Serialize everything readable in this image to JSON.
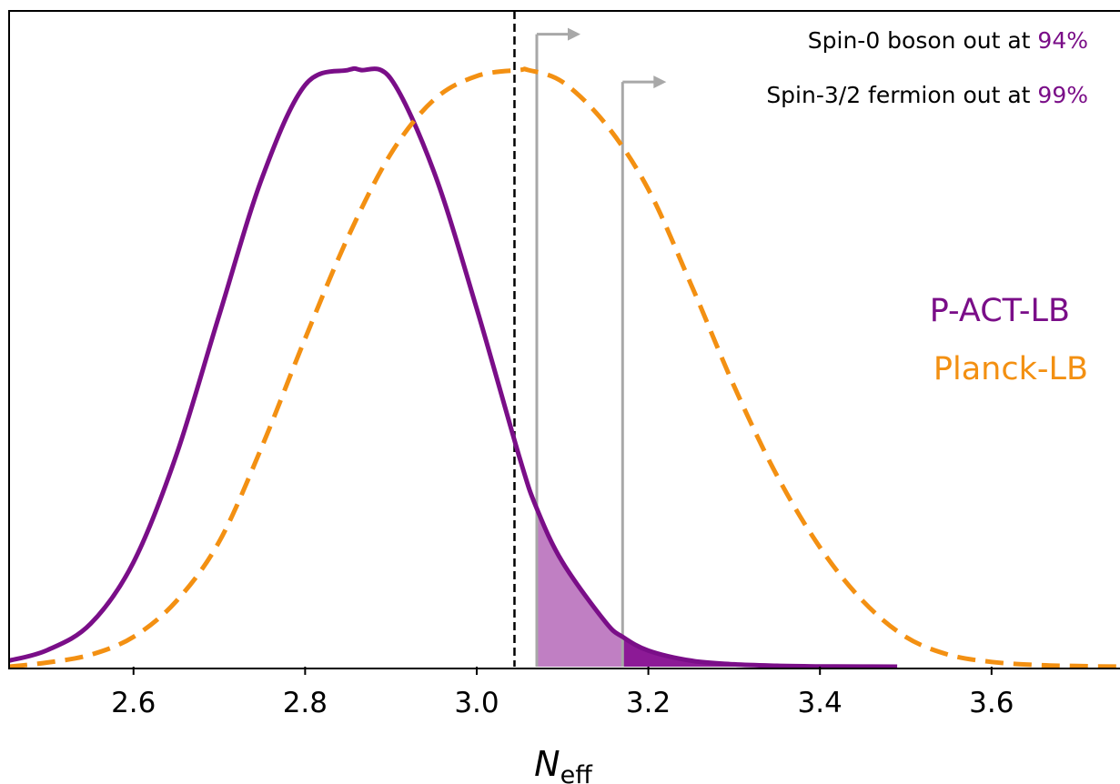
{
  "chart_data": {
    "type": "line",
    "xlabel_main": "N",
    "xlabel_sub": "eff",
    "ylabel": "",
    "xlim": [
      2.455,
      3.755
    ],
    "ylim": [
      0,
      1.1
    ],
    "grid": false,
    "x_ticks": [
      "2.6",
      "2.8",
      "3.0",
      "3.2",
      "3.4",
      "3.6"
    ],
    "y_ticks": [],
    "series": [
      {
        "name": "P-ACT-LB",
        "color": "#7a0e88",
        "style": "solid",
        "x": [
          2.455,
          2.5,
          2.55,
          2.6,
          2.65,
          2.7,
          2.75,
          2.8,
          2.85,
          2.865,
          2.9,
          2.95,
          3.0,
          3.05,
          3.07,
          3.1,
          3.15,
          3.17,
          3.2,
          3.25,
          3.3,
          3.35,
          3.4,
          3.45,
          3.49
        ],
        "y": [
          0.01,
          0.028,
          0.072,
          0.175,
          0.355,
          0.59,
          0.82,
          0.975,
          1.0,
          1.0,
          0.985,
          0.83,
          0.6,
          0.35,
          0.265,
          0.175,
          0.075,
          0.05,
          0.027,
          0.01,
          0.004,
          0.0015,
          0.0005,
          0.0002,
          0.0
        ]
      },
      {
        "name": "Planck-LB",
        "color": "#f39012",
        "style": "dashed",
        "x": [
          2.455,
          2.5,
          2.55,
          2.6,
          2.65,
          2.7,
          2.75,
          2.8,
          2.85,
          2.9,
          2.95,
          3.0,
          3.05,
          3.06,
          3.1,
          3.15,
          3.2,
          3.25,
          3.3,
          3.35,
          3.4,
          3.45,
          3.5,
          3.55,
          3.6,
          3.65,
          3.7,
          3.755
        ],
        "y": [
          0.0,
          0.007,
          0.02,
          0.05,
          0.11,
          0.21,
          0.37,
          0.55,
          0.72,
          0.86,
          0.95,
          0.99,
          1.0,
          1.0,
          0.98,
          0.91,
          0.8,
          0.64,
          0.47,
          0.32,
          0.2,
          0.11,
          0.05,
          0.02,
          0.008,
          0.003,
          0.001,
          0.0
        ]
      }
    ],
    "shaded_regions": [
      {
        "series": "P-ACT-LB",
        "x_from": 3.07,
        "x_to": 3.17,
        "color": "#c07fc3"
      },
      {
        "series": "P-ACT-LB",
        "x_from": 3.17,
        "x_to": 3.49,
        "color": "#8c1a96"
      }
    ],
    "vertical_lines": [
      {
        "x": 3.044,
        "color": "#000000",
        "style": "dashed"
      },
      {
        "x": 3.07,
        "color": "#a8a8a8",
        "style": "solid",
        "arrow": true,
        "ymax": 1.06
      },
      {
        "x": 3.17,
        "color": "#a8a8a8",
        "style": "solid",
        "arrow": true,
        "ymax": 0.98
      }
    ],
    "annotations": [
      {
        "text": "Spin-0 boson out at ",
        "value": "94%"
      },
      {
        "text": "Spin-3/2 fermion out at ",
        "value": "99%"
      }
    ],
    "legend": {
      "placement": "right",
      "entries": [
        {
          "label": "P-ACT-LB",
          "color": "#7a0e88"
        },
        {
          "label": "Planck-LB",
          "color": "#f39012"
        }
      ]
    },
    "annotation_value_color": "#7a0e88"
  }
}
